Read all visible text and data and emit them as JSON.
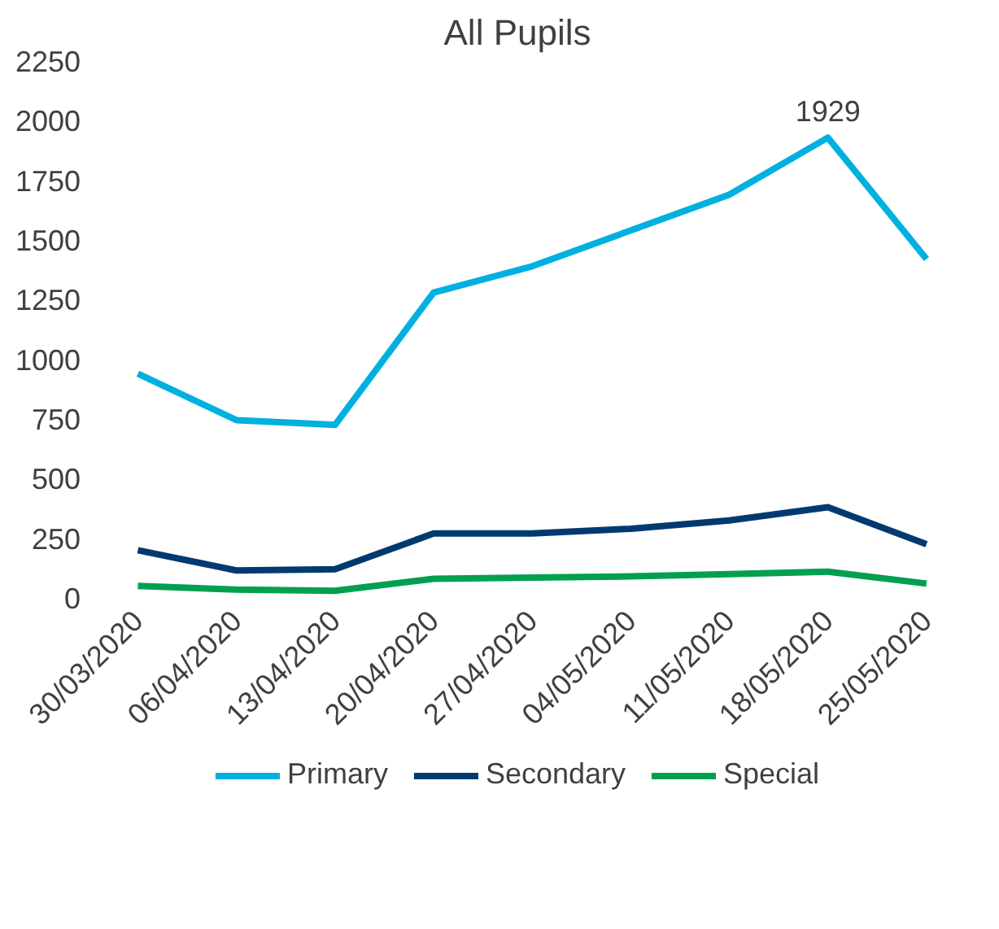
{
  "chart_data": {
    "type": "line",
    "title": "All Pupils",
    "categories": [
      "30/03/2020",
      "06/04/2020",
      "13/04/2020",
      "20/04/2020",
      "27/04/2020",
      "04/05/2020",
      "11/05/2020",
      "18/05/2020",
      "25/05/2020"
    ],
    "series": [
      {
        "name": "Primary",
        "color": "#00b0e0",
        "values": [
          940,
          745,
          725,
          1280,
          1390,
          1540,
          1690,
          1929,
          1420
        ]
      },
      {
        "name": "Secondary",
        "color": "#003a70",
        "values": [
          200,
          115,
          120,
          270,
          270,
          290,
          325,
          380,
          225
        ]
      },
      {
        "name": "Special",
        "color": "#00a050",
        "values": [
          50,
          35,
          30,
          80,
          85,
          90,
          100,
          110,
          60
        ]
      }
    ],
    "ylim": [
      0,
      2250
    ],
    "yticks": [
      0,
      250,
      500,
      750,
      1000,
      1250,
      1500,
      1750,
      2000,
      2250
    ],
    "grid": false,
    "legend": "bottom",
    "marker": "none",
    "line_style": "solid",
    "annotations": [
      {
        "text": "1929",
        "x": "18/05/2020",
        "y": 1929
      }
    ]
  }
}
